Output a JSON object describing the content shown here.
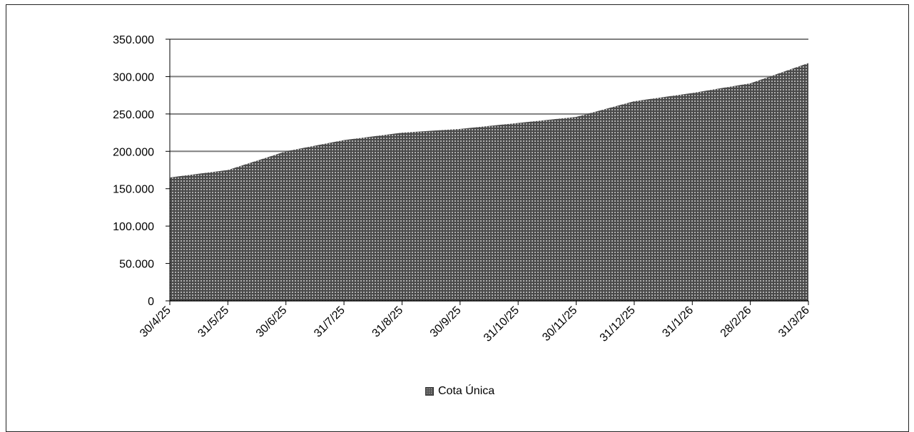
{
  "chart_data": {
    "type": "area",
    "categories": [
      "30/4/25",
      "31/5/25",
      "30/6/25",
      "31/7/25",
      "31/8/25",
      "30/9/25",
      "31/10/25",
      "30/11/25",
      "31/12/25",
      "31/1/26",
      "28/2/26",
      "31/3/26"
    ],
    "series": [
      {
        "name": "Cota Única",
        "values": [
          165000,
          175000,
          200000,
          215000,
          225000,
          230000,
          238000,
          246000,
          267000,
          278000,
          291000,
          318000
        ]
      }
    ],
    "y_ticks": [
      "0",
      "50.000",
      "100.000",
      "150.000",
      "200.000",
      "250.000",
      "300.000",
      "350.000"
    ],
    "ylim": [
      0,
      350000
    ],
    "y_step": 50000,
    "grid": true,
    "legend_position": "bottom",
    "colors": {
      "area_fill": "#4a4a4a",
      "area_dots": "#d0d0d0",
      "grid": "#7f7f7f",
      "axis": "#000000"
    }
  },
  "legend": {
    "label": "Cota Única"
  }
}
